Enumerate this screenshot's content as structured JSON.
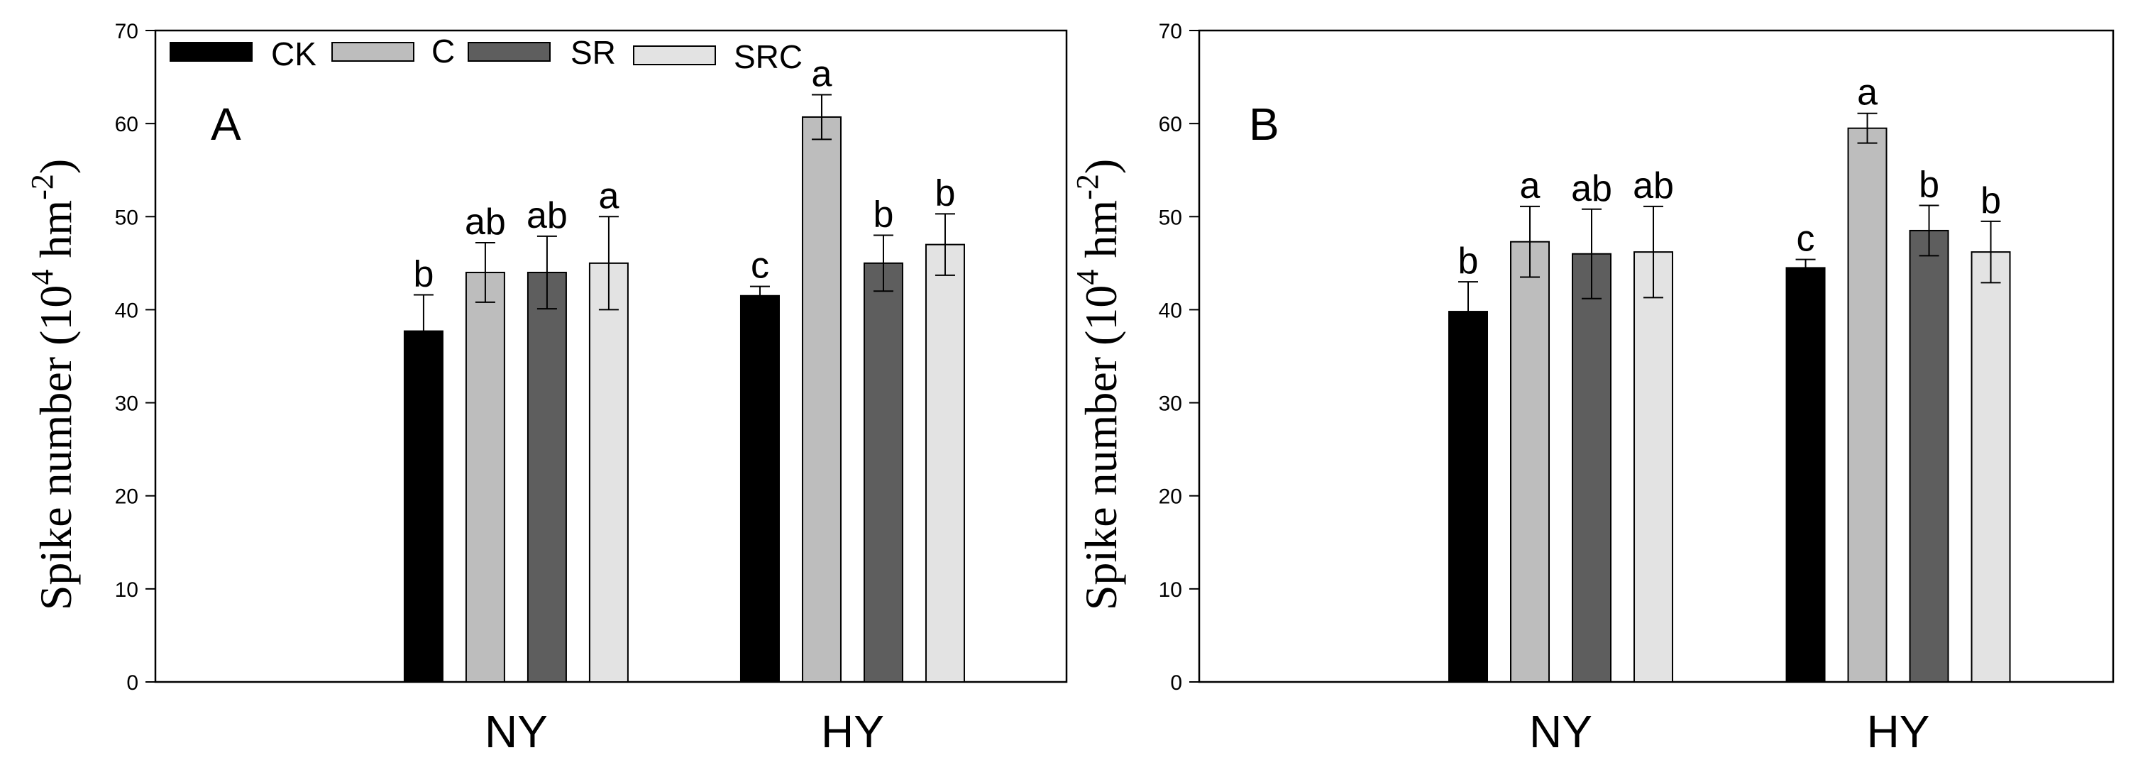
{
  "series_colors": [
    "#000000",
    "#bdbdbd",
    "#5e5e5e",
    "#e3e3e3"
  ],
  "legend": [
    "CK",
    "C",
    "SR",
    "SRC"
  ],
  "chart_data": [
    {
      "type": "bar",
      "panel_label": "A",
      "ylabel": "Spike number (10",
      "ylabel_exp1": "4",
      "ylabel_mid": " hm",
      "ylabel_exp2": "-2",
      "ylabel_end": ")",
      "ylim": [
        0,
        70
      ],
      "yticks": [
        "0",
        "10",
        "20",
        "30",
        "40",
        "50",
        "60",
        "70"
      ],
      "categories": [
        "NY",
        "HY"
      ],
      "series": [
        {
          "name": "CK",
          "values": [
            37.7,
            41.5
          ],
          "errors": [
            3.9,
            1.0
          ],
          "letters": [
            "b",
            "c"
          ]
        },
        {
          "name": "C",
          "values": [
            44.0,
            60.7
          ],
          "errors": [
            3.2,
            2.4
          ],
          "letters": [
            "ab",
            "a"
          ]
        },
        {
          "name": "SR",
          "values": [
            44.0,
            45.0
          ],
          "errors": [
            3.9,
            3.0
          ],
          "letters": [
            "ab",
            "b"
          ]
        },
        {
          "name": "SRC",
          "values": [
            45.0,
            47.0
          ],
          "errors": [
            5.0,
            3.3
          ],
          "letters": [
            "a",
            "b"
          ]
        }
      ]
    },
    {
      "type": "bar",
      "panel_label": "B",
      "ylabel": "Spike number (10",
      "ylabel_exp1": "4",
      "ylabel_mid": " hm",
      "ylabel_exp2": "-2",
      "ylabel_end": ")",
      "ylim": [
        0,
        70
      ],
      "yticks": [
        "0",
        "10",
        "20",
        "30",
        "40",
        "50",
        "60",
        "70"
      ],
      "categories": [
        "NY",
        "HY"
      ],
      "series": [
        {
          "name": "CK",
          "values": [
            39.8,
            44.5
          ],
          "errors": [
            3.2,
            0.9
          ],
          "letters": [
            "b",
            "c"
          ]
        },
        {
          "name": "C",
          "values": [
            47.3,
            59.5
          ],
          "errors": [
            3.8,
            1.6
          ],
          "letters": [
            "a",
            "a"
          ]
        },
        {
          "name": "SR",
          "values": [
            46.0,
            48.5
          ],
          "errors": [
            4.8,
            2.7
          ],
          "letters": [
            "ab",
            "b"
          ]
        },
        {
          "name": "SRC",
          "values": [
            46.2,
            46.2
          ],
          "errors": [
            4.9,
            3.3
          ],
          "letters": [
            "ab",
            "b"
          ]
        }
      ]
    }
  ]
}
